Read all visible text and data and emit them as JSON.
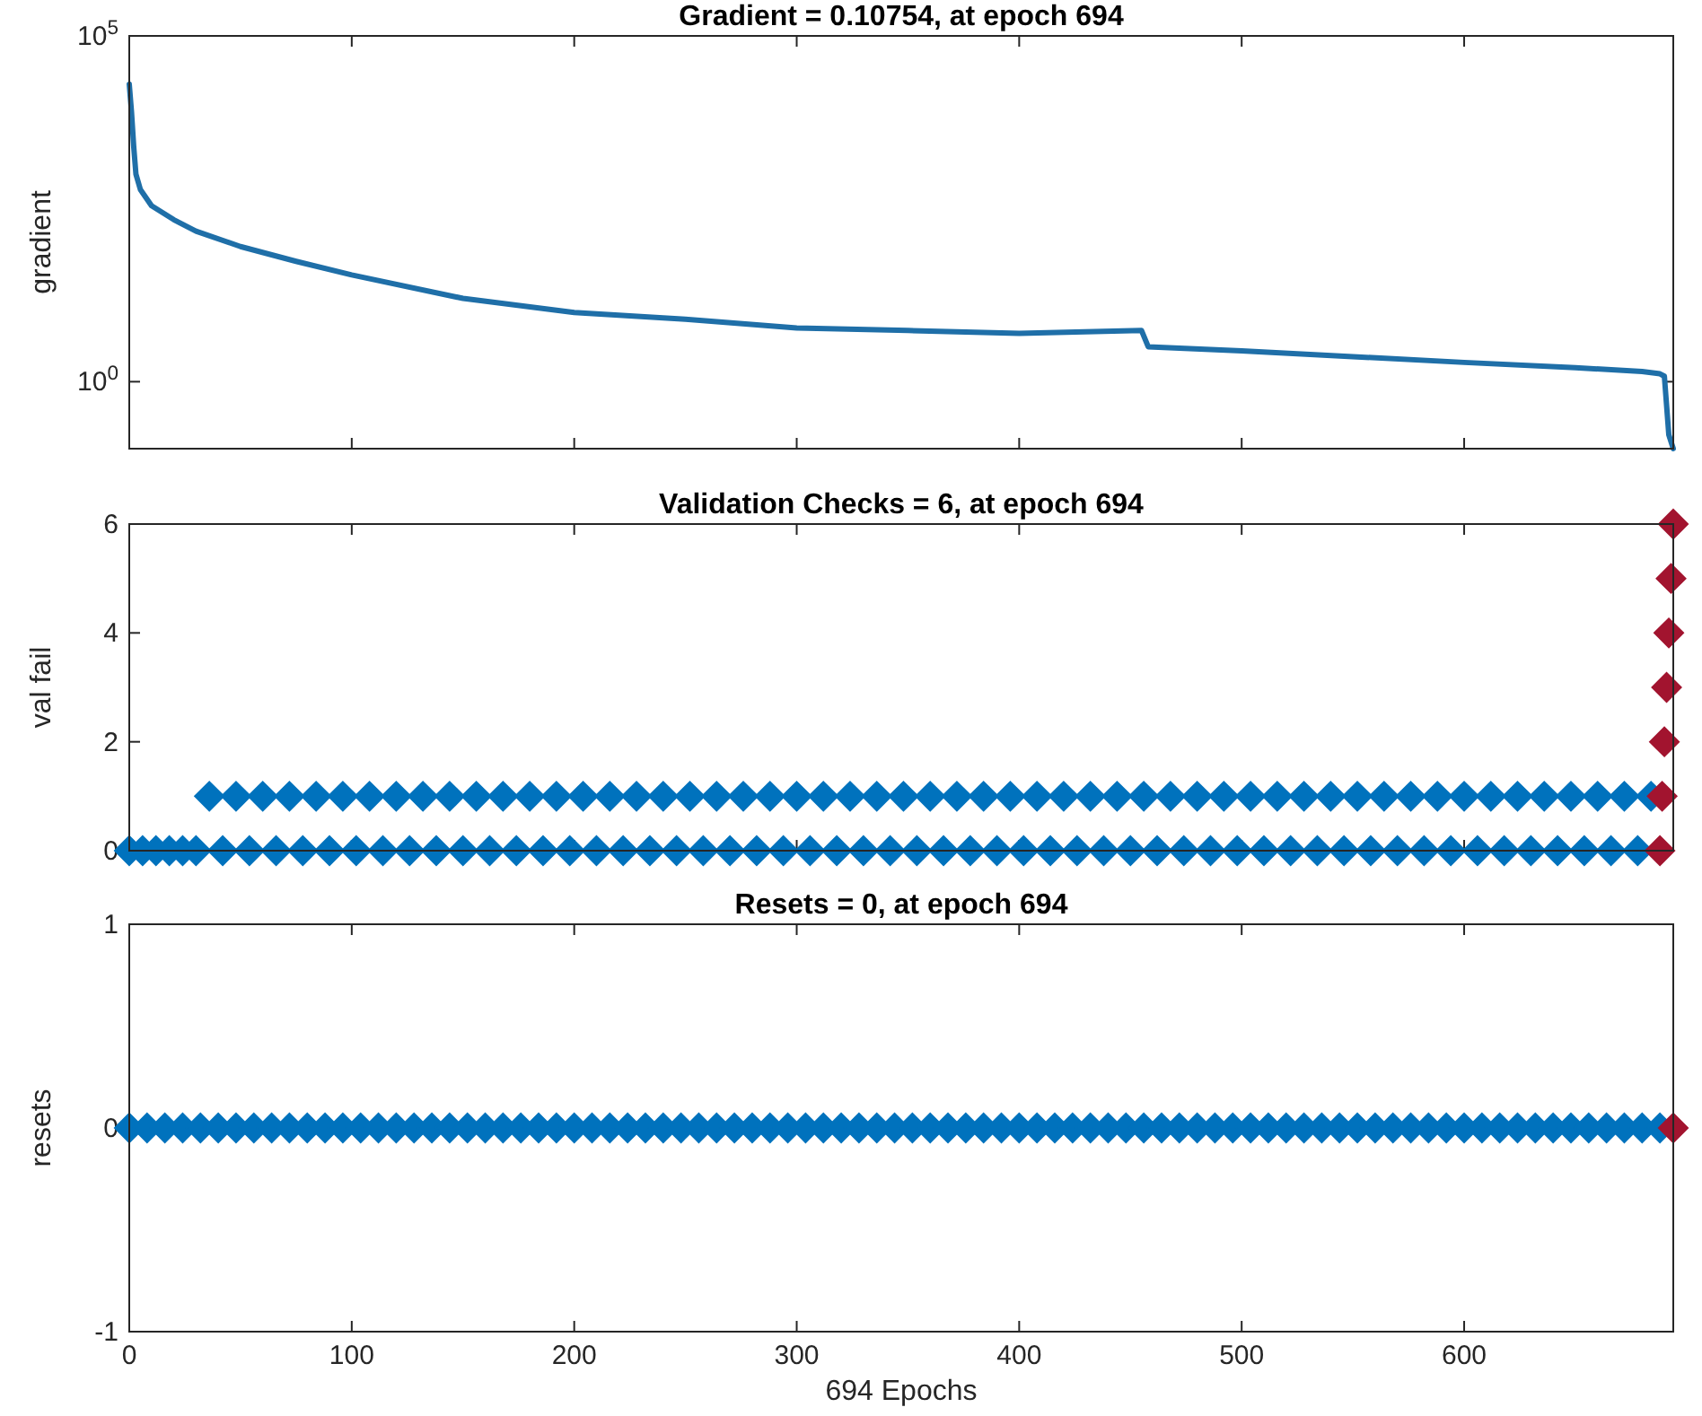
{
  "chart_data": [
    {
      "type": "line",
      "title": "Gradient = 0.10754, at epoch 694",
      "ylabel": "gradient",
      "log": "y",
      "tick_labels": "y",
      "xlim": [
        0,
        694
      ],
      "xticks": [
        0,
        100,
        200,
        300,
        400,
        500,
        600
      ],
      "ylim": [
        0.10754,
        100000
      ],
      "yticks": [
        {
          "value": 1,
          "label": "10$^{0}$"
        },
        {
          "value": 100000,
          "label": "10$^{5}$"
        }
      ],
      "series": [
        {
          "color": "#1f6fa8",
          "x": [
            0,
            1,
            2,
            3,
            5,
            10,
            20,
            30,
            50,
            75,
            100,
            150,
            200,
            250,
            300,
            350,
            400,
            455,
            458,
            500,
            550,
            600,
            650,
            680,
            688,
            690,
            692,
            694
          ],
          "values": [
            20000,
            8000,
            2500,
            1000,
            600,
            350,
            220,
            150,
            90,
            55,
            35,
            16,
            10,
            8,
            6,
            5.5,
            5,
            5.5,
            3.2,
            2.8,
            2.3,
            1.9,
            1.6,
            1.4,
            1.3,
            1.2,
            0.17,
            0.10754
          ]
        }
      ]
    },
    {
      "type": "scatter",
      "title": "Validation Checks = 6, at epoch 694",
      "ylabel": "val fail",
      "marker": "diamond",
      "tick_labels": "y",
      "xlim": [
        0,
        694
      ],
      "xticks": [
        0,
        100,
        200,
        300,
        400,
        500,
        600
      ],
      "ylim": [
        0,
        6
      ],
      "yticks": [
        0,
        2,
        4,
        6
      ],
      "series": [
        {
          "color": "#0072bd",
          "x": [
            0,
            6,
            12,
            18,
            24,
            30,
            36,
            42,
            48,
            54,
            60,
            66,
            72,
            78,
            84,
            90,
            96,
            102,
            108,
            114,
            120,
            126,
            132,
            138,
            144,
            150,
            156,
            162,
            168,
            174,
            180,
            186,
            192,
            198,
            204,
            210,
            216,
            222,
            228,
            234,
            240,
            246,
            252,
            258,
            264,
            270,
            276,
            282,
            288,
            294,
            300,
            306,
            312,
            318,
            324,
            330,
            336,
            342,
            348,
            354,
            360,
            366,
            372,
            378,
            384,
            390,
            396,
            402,
            408,
            414,
            420,
            426,
            432,
            438,
            444,
            450,
            456,
            462,
            468,
            474,
            480,
            486,
            492,
            498,
            504,
            510,
            516,
            522,
            528,
            534,
            540,
            546,
            552,
            558,
            564,
            570,
            576,
            582,
            588,
            594,
            600,
            606,
            612,
            618,
            624,
            630,
            636,
            642,
            648,
            654,
            660,
            666,
            672,
            678,
            684
          ],
          "values": [
            0,
            0,
            0,
            0,
            0,
            0,
            1,
            0,
            1,
            0,
            1,
            0,
            1,
            0,
            1,
            0,
            1,
            0,
            1,
            0,
            1,
            0,
            1,
            0,
            1,
            0,
            1,
            0,
            1,
            0,
            1,
            0,
            1,
            0,
            1,
            0,
            1,
            0,
            1,
            0,
            1,
            0,
            1,
            0,
            1,
            0,
            1,
            0,
            1,
            0,
            1,
            0,
            1,
            0,
            1,
            0,
            1,
            0,
            1,
            0,
            1,
            0,
            1,
            0,
            1,
            0,
            1,
            0,
            1,
            0,
            1,
            0,
            1,
            0,
            1,
            0,
            1,
            0,
            1,
            0,
            1,
            0,
            1,
            0,
            1,
            0,
            1,
            0,
            1,
            0,
            1,
            0,
            1,
            0,
            1,
            0,
            1,
            0,
            1,
            0,
            1,
            0,
            1,
            0,
            1,
            0,
            1,
            0,
            1,
            0,
            1,
            0,
            1,
            0,
            1
          ]
        },
        {
          "color": "#a2142f",
          "x": [
            688,
            689,
            690,
            691,
            692,
            693,
            694
          ],
          "values": [
            0,
            1,
            2,
            3,
            4,
            5,
            6
          ]
        }
      ]
    },
    {
      "type": "scatter",
      "title": "Resets = 0, at epoch 694",
      "ylabel": "resets",
      "xlabel": "694 Epochs",
      "marker": "diamond",
      "xlim": [
        0,
        694
      ],
      "xticks": [
        0,
        100,
        200,
        300,
        400,
        500,
        600
      ],
      "ylim": [
        -1,
        1
      ],
      "yticks": [
        -1,
        0,
        1
      ],
      "series": [
        {
          "color": "#0072bd",
          "x": [
            0,
            8,
            16,
            24,
            32,
            40,
            48,
            56,
            64,
            72,
            80,
            88,
            96,
            104,
            112,
            120,
            128,
            136,
            144,
            152,
            160,
            168,
            176,
            184,
            192,
            200,
            208,
            216,
            224,
            232,
            240,
            248,
            256,
            264,
            272,
            280,
            288,
            296,
            304,
            312,
            320,
            328,
            336,
            344,
            352,
            360,
            368,
            376,
            384,
            392,
            400,
            408,
            416,
            424,
            432,
            440,
            448,
            456,
            464,
            472,
            480,
            488,
            496,
            504,
            512,
            520,
            528,
            536,
            544,
            552,
            560,
            568,
            576,
            584,
            592,
            600,
            608,
            616,
            624,
            632,
            640,
            648,
            656,
            664,
            672,
            680,
            688
          ],
          "values": [
            0,
            0,
            0,
            0,
            0,
            0,
            0,
            0,
            0,
            0,
            0,
            0,
            0,
            0,
            0,
            0,
            0,
            0,
            0,
            0,
            0,
            0,
            0,
            0,
            0,
            0,
            0,
            0,
            0,
            0,
            0,
            0,
            0,
            0,
            0,
            0,
            0,
            0,
            0,
            0,
            0,
            0,
            0,
            0,
            0,
            0,
            0,
            0,
            0,
            0,
            0,
            0,
            0,
            0,
            0,
            0,
            0,
            0,
            0,
            0,
            0,
            0,
            0,
            0,
            0,
            0,
            0,
            0,
            0,
            0,
            0,
            0,
            0,
            0,
            0,
            0,
            0,
            0,
            0,
            0,
            0,
            0,
            0,
            0,
            0,
            0,
            0
          ]
        },
        {
          "color": "#a2142f",
          "x": [
            694
          ],
          "values": [
            0
          ]
        }
      ]
    }
  ]
}
